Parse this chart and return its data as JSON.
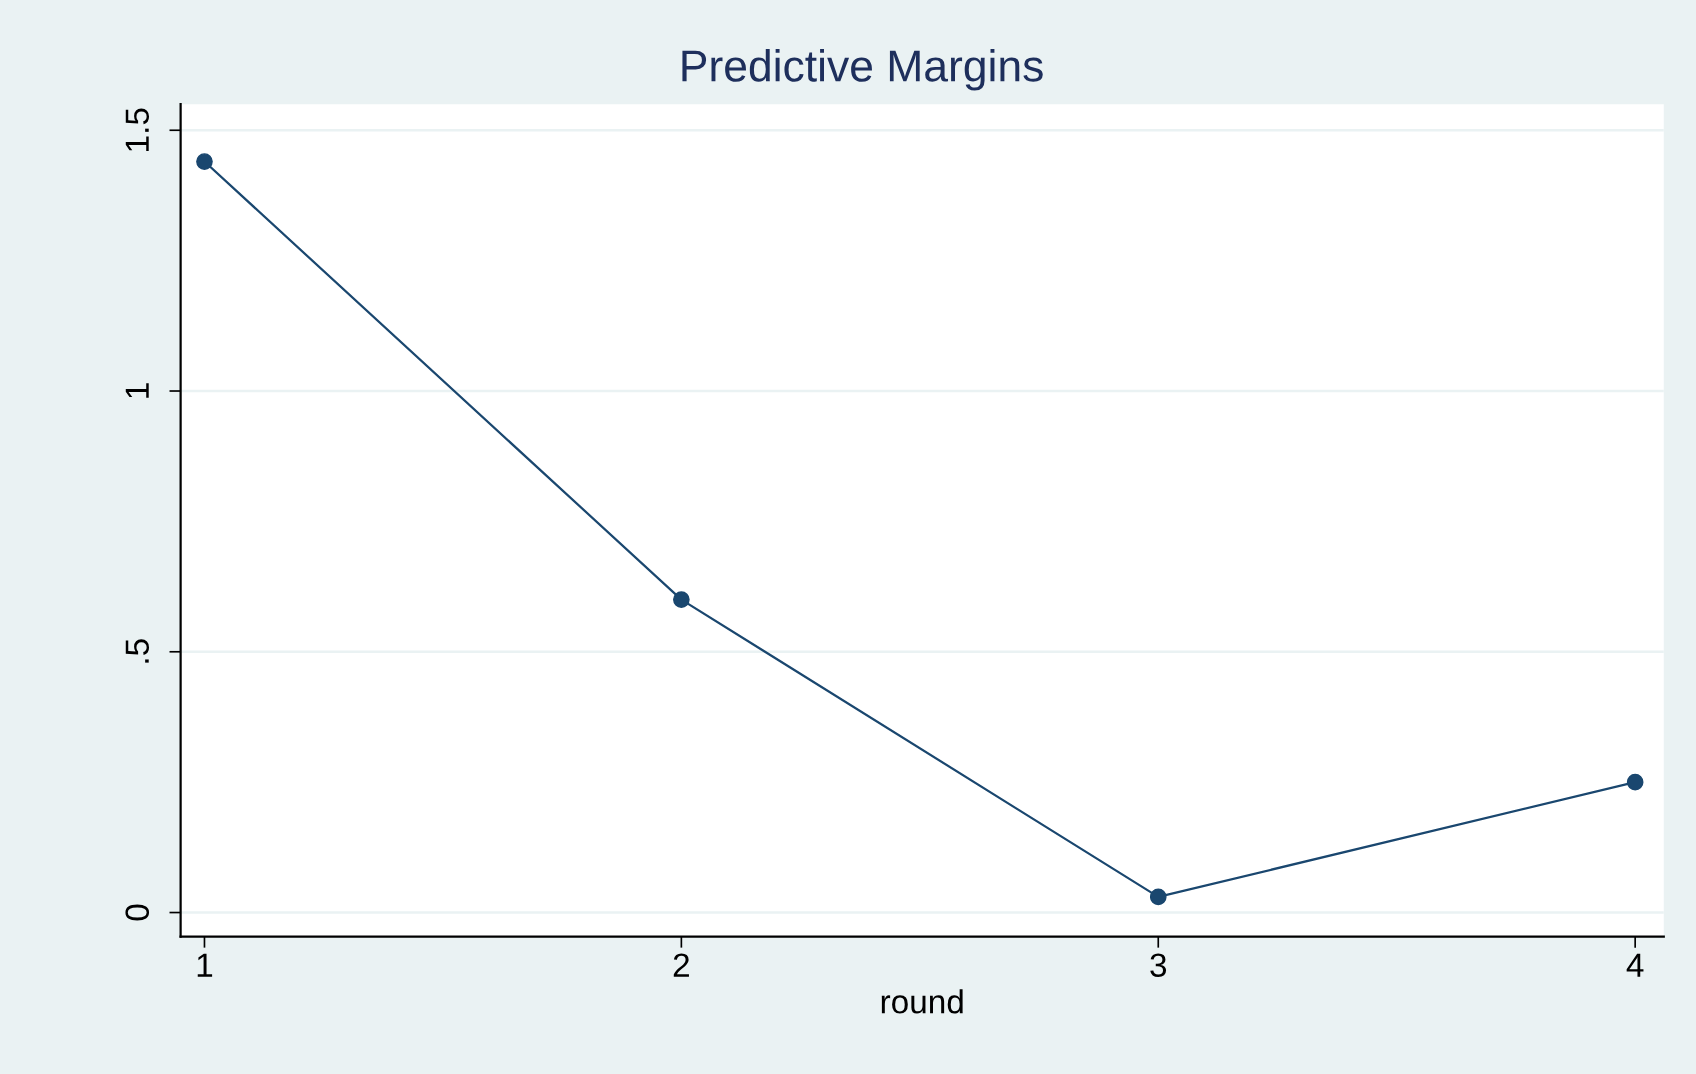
{
  "chart_data": {
    "type": "line",
    "title": "Predictive Margins",
    "xlabel": "round",
    "x": [
      1,
      2,
      3,
      4
    ],
    "series": [
      {
        "color": "#1a476f",
        "values": [
          1.44,
          0.6,
          0.03,
          0.25
        ]
      }
    ],
    "xlim": [
      0.95,
      4.06
    ],
    "ylim": [
      -0.046,
      1.55
    ],
    "xticks": [
      1,
      2,
      3,
      4
    ],
    "yticks": [
      0,
      {
        "value": 0.5,
        "label": ".5"
      },
      1,
      1.5
    ],
    "grid": "y",
    "marker": "circle",
    "line_style": "solid"
  }
}
